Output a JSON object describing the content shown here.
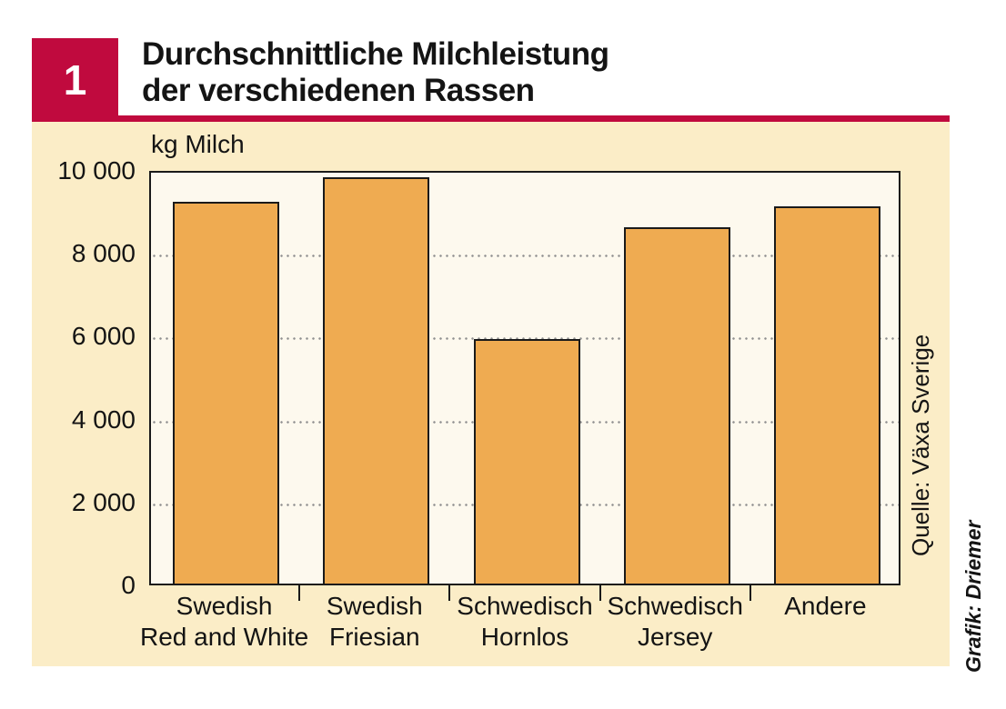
{
  "figure": {
    "number": "1",
    "title_lines": [
      "Durchschnittliche Milchleistung",
      "der verschiedenen Rassen"
    ],
    "source": "Quelle: Växa Sverige",
    "credit": "Grafik: Driemer"
  },
  "colors": {
    "accent_red": "#c00a3e",
    "panel_cream": "#fbedc7",
    "plot_background": "#fdf9ee",
    "bar_fill": "#efab51",
    "bar_border": "#1a1a1a",
    "grid_dot": "#8f8f8f"
  },
  "chart_data": {
    "type": "bar",
    "title": "Durchschnittliche Milchleistung der verschiedenen Rassen",
    "unit_label": "kg Milch",
    "xlabel": "",
    "ylabel": "kg Milch",
    "categories": [
      "Swedish Red and White",
      "Swedish Friesian",
      "Schwedisch Hornlos",
      "Schwedisch Jersey",
      "Andere"
    ],
    "category_label_lines": [
      [
        "Swedish",
        "Red and White"
      ],
      [
        "Swedish",
        "Friesian"
      ],
      [
        "Schwedisch",
        "Hornlos"
      ],
      [
        "Schwedisch",
        "Jersey"
      ],
      [
        "Andere"
      ]
    ],
    "values": [
      9200,
      9800,
      5900,
      8600,
      9100
    ],
    "ylim": [
      0,
      10000
    ],
    "yticks": [
      0,
      2000,
      4000,
      6000,
      8000,
      10000
    ],
    "ytick_labels": [
      "0",
      "2 000",
      "4 000",
      "6 000",
      "8 000",
      "10 000"
    ],
    "gridlines_at": [
      2000,
      4000,
      6000,
      8000
    ],
    "grid": "dotted-horizontal",
    "legend": "none"
  }
}
